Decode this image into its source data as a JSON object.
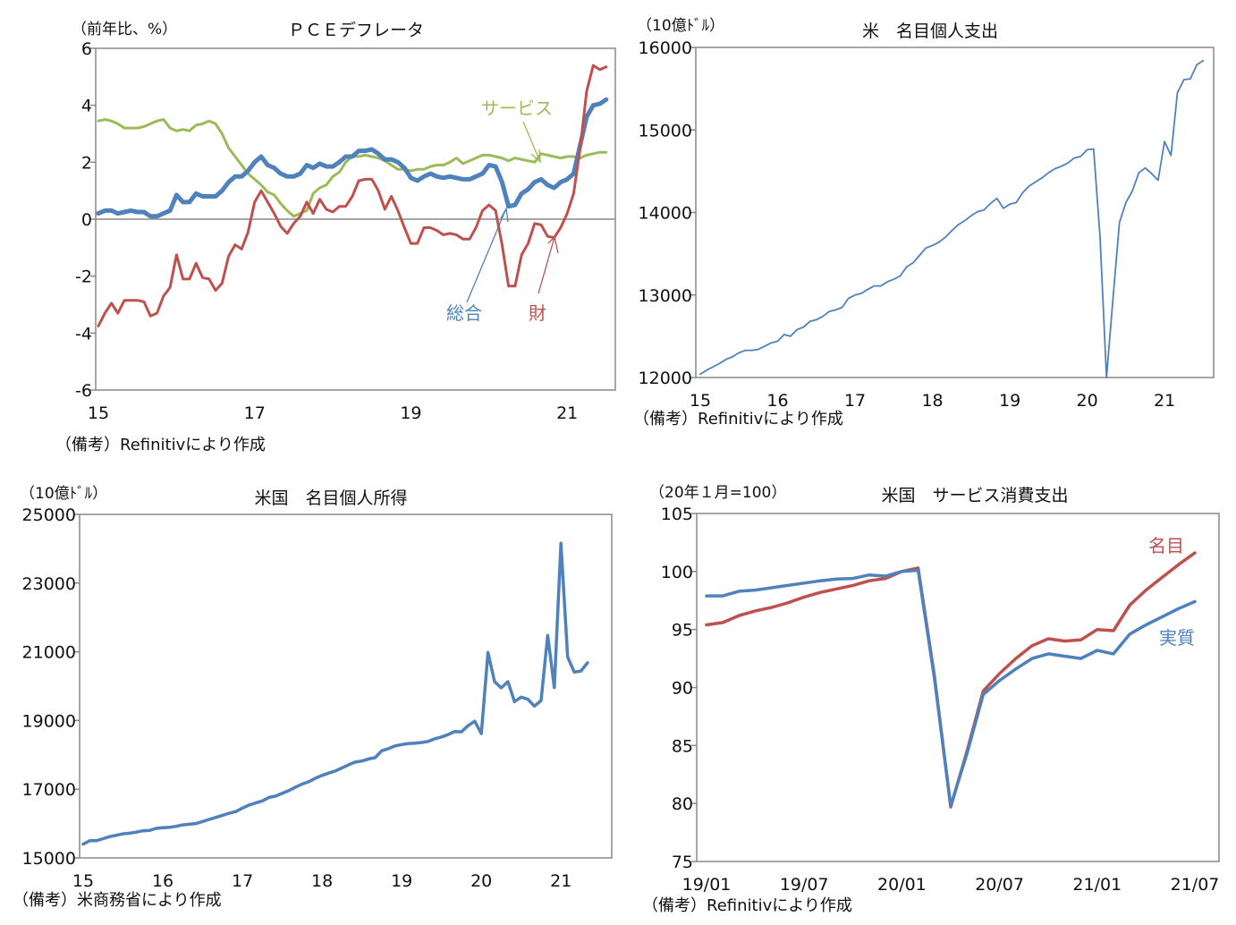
{
  "chart_data": [
    {
      "type": "line",
      "title": "ＰＣＥデフレータ",
      "unit_label": "（前年比、%）",
      "note": "（備考）Refinitivにより作成",
      "x_start": "2015-01",
      "frequency": "monthly",
      "x_ticks": [
        "15",
        "17",
        "19",
        "21"
      ],
      "y_ticks": [
        "6",
        "4",
        "2",
        "0",
        "-2",
        "-4",
        "-6"
      ],
      "ylim": [
        -6,
        6
      ],
      "zero_line": true,
      "series": [
        {
          "name": "サービス",
          "color": "#9BBB59",
          "values": [
            3.45,
            3.5,
            3.45,
            3.35,
            3.2,
            3.2,
            3.2,
            3.25,
            3.35,
            3.45,
            3.5,
            3.2,
            3.1,
            3.15,
            3.1,
            3.3,
            3.35,
            3.45,
            3.35,
            3.0,
            2.5,
            2.2,
            1.9,
            1.6,
            1.4,
            1.2,
            0.95,
            0.85,
            0.55,
            0.3,
            0.1,
            0.2,
            0.3,
            0.9,
            1.1,
            1.2,
            1.5,
            1.65,
            2.0,
            2.2,
            2.2,
            2.25,
            2.2,
            2.15,
            2.05,
            1.9,
            1.75,
            1.75,
            1.7,
            1.75,
            1.75,
            1.85,
            1.9,
            1.9,
            2.0,
            2.15,
            1.95,
            2.05,
            2.15,
            2.25,
            2.25,
            2.2,
            2.15,
            2.05,
            2.15,
            2.1,
            2.05,
            2.0,
            2.3,
            2.25,
            2.2,
            2.15,
            2.2,
            2.2,
            2.15,
            2.25,
            2.3,
            2.35,
            2.35
          ]
        },
        {
          "name": "総合",
          "color": "#4F81BD",
          "values": [
            0.2,
            0.3,
            0.3,
            0.2,
            0.25,
            0.3,
            0.25,
            0.25,
            0.1,
            0.1,
            0.2,
            0.3,
            0.85,
            0.6,
            0.6,
            0.9,
            0.8,
            0.8,
            0.8,
            1.0,
            1.3,
            1.5,
            1.5,
            1.7,
            2.0,
            2.2,
            1.9,
            1.8,
            1.6,
            1.5,
            1.5,
            1.6,
            1.9,
            1.8,
            1.95,
            1.85,
            1.85,
            2.0,
            2.2,
            2.2,
            2.4,
            2.4,
            2.45,
            2.3,
            2.1,
            2.1,
            2.0,
            1.8,
            1.45,
            1.35,
            1.5,
            1.6,
            1.5,
            1.45,
            1.5,
            1.45,
            1.4,
            1.4,
            1.5,
            1.6,
            1.9,
            1.85,
            1.3,
            0.45,
            0.5,
            0.9,
            1.05,
            1.3,
            1.4,
            1.2,
            1.1,
            1.3,
            1.4,
            1.6,
            2.6,
            3.6,
            4.0,
            4.05,
            4.2
          ]
        },
        {
          "name": "財",
          "color": "#C0504D",
          "values": [
            -3.75,
            -3.3,
            -2.95,
            -3.3,
            -2.85,
            -2.85,
            -2.85,
            -2.9,
            -3.4,
            -3.3,
            -2.7,
            -2.4,
            -1.25,
            -2.1,
            -2.1,
            -1.55,
            -2.05,
            -2.1,
            -2.5,
            -2.25,
            -1.3,
            -0.9,
            -1.05,
            -0.45,
            0.6,
            1.0,
            0.6,
            0.2,
            -0.25,
            -0.5,
            -0.15,
            0.1,
            0.6,
            0.2,
            0.7,
            0.35,
            0.25,
            0.45,
            0.45,
            0.8,
            1.35,
            1.4,
            1.4,
            1.0,
            0.35,
            0.8,
            0.3,
            -0.3,
            -0.85,
            -0.85,
            -0.3,
            -0.3,
            -0.4,
            -0.55,
            -0.5,
            -0.55,
            -0.7,
            -0.7,
            -0.3,
            0.3,
            0.5,
            0.3,
            -0.9,
            -2.35,
            -2.35,
            -1.25,
            -0.85,
            -0.15,
            -0.2,
            -0.6,
            -0.65,
            -0.3,
            0.2,
            0.9,
            2.5,
            4.5,
            5.4,
            5.25,
            5.35
          ]
        }
      ]
    },
    {
      "type": "line",
      "title": "米　名目個人支出",
      "unit_label": "（10億ﾄﾞﾙ）",
      "note": "（備考）Refinitivにより作成",
      "x_start": "2015-01",
      "frequency": "monthly",
      "x_ticks": [
        "15",
        "16",
        "17",
        "18",
        "19",
        "20",
        "21"
      ],
      "y_ticks": [
        "16000",
        "15000",
        "14000",
        "13000",
        "12000"
      ],
      "ylim": [
        12000,
        16000
      ],
      "series": [
        {
          "color": "#4F81BD",
          "values": [
            12040,
            12090,
            12130,
            12170,
            12220,
            12250,
            12300,
            12330,
            12330,
            12340,
            12380,
            12420,
            12440,
            12520,
            12500,
            12580,
            12610,
            12680,
            12700,
            12740,
            12800,
            12820,
            12850,
            12960,
            13000,
            13020,
            13070,
            13110,
            13110,
            13160,
            13190,
            13230,
            13340,
            13390,
            13480,
            13570,
            13600,
            13640,
            13700,
            13780,
            13850,
            13900,
            13960,
            14010,
            14030,
            14110,
            14170,
            14050,
            14100,
            14120,
            14240,
            14320,
            14370,
            14420,
            14480,
            14530,
            14560,
            14600,
            14660,
            14680,
            14760,
            14770,
            13700,
            12000,
            12950,
            13880,
            14120,
            14260,
            14480,
            14540,
            14470,
            14390,
            14860,
            14690,
            15450,
            15610,
            15620,
            15790,
            15840
          ]
        }
      ]
    },
    {
      "type": "line",
      "title": "米国　名目個人所得",
      "unit_label": "（10億ﾄﾞﾙ）",
      "note": "（備考）米商務省により作成",
      "x_start": "2015-01",
      "frequency": "monthly",
      "x_ticks": [
        "15",
        "16",
        "17",
        "18",
        "19",
        "20",
        "21"
      ],
      "y_ticks": [
        "25000",
        "23000",
        "21000",
        "19000",
        "17000",
        "15000"
      ],
      "ylim": [
        15000,
        25000
      ],
      "series": [
        {
          "color": "#4F81BD",
          "values": [
            15400,
            15500,
            15500,
            15560,
            15620,
            15660,
            15700,
            15720,
            15750,
            15790,
            15800,
            15860,
            15880,
            15890,
            15920,
            15960,
            15980,
            16000,
            16060,
            16120,
            16180,
            16240,
            16300,
            16350,
            16450,
            16540,
            16600,
            16660,
            16760,
            16800,
            16880,
            16960,
            17060,
            17150,
            17220,
            17320,
            17400,
            17470,
            17530,
            17620,
            17710,
            17790,
            17820,
            17880,
            17920,
            18120,
            18180,
            18260,
            18300,
            18330,
            18340,
            18360,
            18390,
            18470,
            18520,
            18590,
            18680,
            18670,
            18850,
            18980,
            18620,
            20980,
            20130,
            19950,
            20130,
            19550,
            19680,
            19620,
            19420,
            19580,
            21480,
            19960,
            24160,
            20850,
            20410,
            20440,
            20680
          ]
        }
      ]
    },
    {
      "type": "line",
      "title": "米国　サービス消費支出",
      "unit_label": "（20年１月=100）",
      "note": "（備考）Refinitivにより作成",
      "x_start": "2019-01",
      "frequency": "monthly",
      "x_ticks": [
        "19/01",
        "19/07",
        "20/01",
        "20/07",
        "21/01",
        "21/07"
      ],
      "y_ticks": [
        "105",
        "100",
        "95",
        "90",
        "85",
        "80",
        "75"
      ],
      "ylim": [
        75,
        105
      ],
      "series": [
        {
          "name": "名目",
          "color": "#C0504D",
          "values": [
            95.4,
            95.6,
            96.2,
            96.6,
            96.9,
            97.3,
            97.8,
            98.2,
            98.5,
            98.8,
            99.2,
            99.4,
            100,
            100.3,
            91,
            79.7,
            84.5,
            89.7,
            91.2,
            92.5,
            93.6,
            94.2,
            94.0,
            94.1,
            95.0,
            94.9,
            97.1,
            98.4,
            99.5,
            100.6,
            101.6
          ]
        },
        {
          "name": "実質",
          "color": "#4F81BD",
          "values": [
            97.9,
            97.9,
            98.3,
            98.4,
            98.6,
            98.8,
            99.0,
            99.2,
            99.35,
            99.4,
            99.7,
            99.6,
            100,
            100.1,
            90.8,
            79.8,
            84.3,
            89.4,
            90.6,
            91.6,
            92.5,
            92.9,
            92.7,
            92.5,
            93.2,
            92.9,
            94.6,
            95.4,
            96.1,
            96.8,
            97.4
          ]
        }
      ]
    }
  ]
}
